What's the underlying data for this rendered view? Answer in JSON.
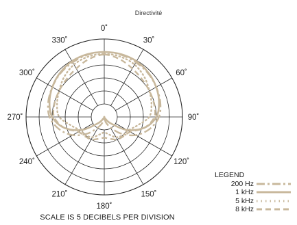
{
  "chart_data": {
    "type": "polar",
    "title": "Directivité",
    "angle_labels": [
      "0˚",
      "30˚",
      "60˚",
      "90˚",
      "120˚",
      "150˚",
      "180˚",
      "210˚",
      "240˚",
      "270˚",
      "300˚",
      "330˚"
    ],
    "angles_deg": [
      0,
      30,
      60,
      90,
      120,
      150,
      180,
      210,
      240,
      270,
      300,
      330
    ],
    "rings": 6,
    "radial_unit": "dB",
    "scale_note": "SCALE IS 5 DECIBELS PER DIVISION",
    "legend_title": "LEGEND",
    "line_color": "#c8b89c",
    "series": [
      {
        "name": "200 Hz",
        "style": "dash-dot",
        "theta_deg": [
          0,
          15,
          30,
          45,
          60,
          75,
          90,
          105,
          120,
          135,
          150,
          165,
          180,
          195,
          210,
          225,
          240,
          255,
          270,
          285,
          300,
          315,
          330,
          345
        ],
        "r_div": [
          5.0,
          4.95,
          4.85,
          4.75,
          4.6,
          4.45,
          4.2,
          3.6,
          2.8,
          1.8,
          0.9,
          0.4,
          0.0,
          0.4,
          0.9,
          1.8,
          2.8,
          3.6,
          4.2,
          4.45,
          4.6,
          4.75,
          4.85,
          4.95
        ]
      },
      {
        "name": "1 kHz",
        "style": "solid",
        "theta_deg": [
          0,
          15,
          30,
          45,
          60,
          75,
          90,
          105,
          120,
          135,
          150,
          165,
          180,
          195,
          210,
          225,
          240,
          255,
          270,
          285,
          300,
          315,
          330,
          345
        ],
        "r_div": [
          5.0,
          5.0,
          4.95,
          4.8,
          4.6,
          4.35,
          4.0,
          3.2,
          2.0,
          0.7,
          0.15,
          0.0,
          0.0,
          0.0,
          0.15,
          0.7,
          2.0,
          3.2,
          4.0,
          4.35,
          4.6,
          4.8,
          4.95,
          5.0
        ]
      },
      {
        "name": "5 kHz",
        "style": "dotted",
        "theta_deg": [
          0,
          15,
          30,
          45,
          60,
          75,
          90,
          105,
          120,
          135,
          150,
          165,
          180,
          195,
          210,
          225,
          240,
          255,
          270,
          285,
          300,
          315,
          330,
          345
        ],
        "r_div": [
          4.85,
          4.8,
          4.65,
          4.35,
          4.0,
          3.75,
          3.45,
          2.6,
          2.1,
          2.0,
          1.8,
          1.4,
          1.2,
          1.4,
          1.8,
          2.0,
          2.1,
          2.6,
          3.45,
          3.75,
          4.0,
          4.35,
          4.65,
          4.8
        ]
      },
      {
        "name": "8 kHz",
        "style": "dashed",
        "theta_deg": [
          0,
          15,
          30,
          45,
          60,
          75,
          90,
          105,
          120,
          135,
          150,
          165,
          180,
          195,
          210,
          225,
          240,
          255,
          270,
          285,
          300,
          315,
          330,
          345
        ],
        "r_div": [
          4.8,
          4.6,
          4.3,
          4.1,
          4.0,
          3.95,
          3.85,
          3.2,
          2.3,
          2.1,
          2.0,
          1.75,
          1.6,
          1.75,
          2.0,
          2.1,
          2.3,
          3.2,
          3.85,
          3.95,
          4.0,
          4.1,
          4.3,
          4.6
        ]
      }
    ]
  }
}
